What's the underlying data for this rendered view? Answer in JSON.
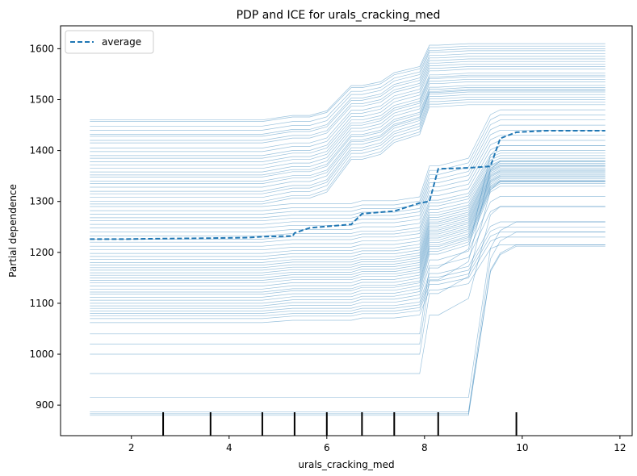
{
  "chart_data": {
    "type": "line",
    "title": "PDP and ICE for urals_cracking_med",
    "xlabel": "urals_cracking_med",
    "ylabel": "Partial dependence",
    "xlim": [
      0.55,
      12.25
    ],
    "ylim": [
      840,
      1645
    ],
    "x_ticks": [
      2,
      4,
      6,
      8,
      10,
      12
    ],
    "y_ticks": [
      900,
      1000,
      1100,
      1200,
      1300,
      1400,
      1500,
      1600
    ],
    "legend": {
      "label": "average",
      "position": "top-left"
    },
    "colors": {
      "ice": "#1f77b4",
      "average": "#1f77b4",
      "rug": "#000000"
    },
    "rug_x": [
      2.65,
      3.62,
      4.68,
      5.34,
      6.0,
      6.72,
      7.38,
      8.28,
      9.88
    ],
    "x": [
      1.15,
      1.8,
      2.65,
      3.62,
      4.4,
      4.68,
      5.3,
      5.34,
      5.65,
      6.0,
      6.5,
      6.72,
      7.1,
      7.38,
      7.9,
      8.1,
      8.28,
      8.9,
      9.35,
      9.55,
      9.88,
      10.5,
      11.7
    ],
    "average": [
      1226,
      1226,
      1227,
      1228,
      1229,
      1231,
      1232,
      1238,
      1248,
      1251,
      1255,
      1276,
      1279,
      1281,
      1297,
      1300,
      1364,
      1366,
      1369,
      1424,
      1436,
      1439,
      1439
    ],
    "ice_group_a": {
      "description_free": true,
      "starts": [
        1460,
        1457,
        1448,
        1440,
        1432,
        1428,
        1420,
        1415,
        1405,
        1398,
        1390,
        1385,
        1378,
        1372,
        1365,
        1358,
        1352,
        1348,
        1340,
        1335,
        1328,
        1320,
        1315,
        1308,
        1300,
        1295
      ],
      "rise1": [
        0.085,
        0.085,
        0.08,
        0.085,
        0.075,
        0.085,
        0.08,
        0.085,
        0.08,
        0.08,
        0.075,
        0.08,
        0.08,
        0.075,
        0.08,
        0.075,
        0.08,
        0.075,
        0.08,
        0.075,
        0.08,
        0.075,
        0.08,
        0.075,
        0.08,
        0.075
      ],
      "ends": [
        1610,
        1605,
        1600,
        1596,
        1590,
        1585,
        1580,
        1575,
        1570,
        1565,
        1560,
        1552,
        1548,
        1545,
        1540,
        1535,
        1528,
        1524,
        1520,
        1518,
        1515,
        1510,
        1505,
        1500,
        1495,
        1490
      ]
    },
    "ice_group_b": {
      "starts": [
        1290,
        1282,
        1275,
        1268,
        1262,
        1255,
        1248,
        1240,
        1232,
        1226,
        1220,
        1212,
        1205,
        1198,
        1192,
        1186,
        1180,
        1175,
        1170,
        1165,
        1160,
        1155,
        1150,
        1145,
        1140,
        1134,
        1128,
        1122,
        1118,
        1112,
        1106,
        1100,
        1095,
        1090,
        1085,
        1080,
        1075,
        1070,
        1062
      ],
      "ends": [
        1480,
        1470,
        1460,
        1450,
        1440,
        1430,
        1420,
        1410,
        1400,
        1395,
        1390,
        1385,
        1380,
        1378,
        1375,
        1372,
        1370,
        1368,
        1365,
        1362,
        1360,
        1358,
        1355,
        1352,
        1350,
        1348,
        1345,
        1342,
        1340,
        1338,
        1335,
        1330,
        1310,
        1290,
        1260,
        1250,
        1240,
        1230,
        1215
      ]
    },
    "ice_low": [
      {
        "start": 1040,
        "end": 1410
      },
      {
        "start": 1020,
        "end": 1380
      },
      {
        "start": 1000,
        "end": 1340
      },
      {
        "start": 962,
        "end": 1290
      },
      {
        "start": 915,
        "end": 1260
      },
      {
        "start": 887,
        "end": 1240
      },
      {
        "start": 883,
        "end": 1215
      },
      {
        "start": 880,
        "end": 1212
      }
    ]
  }
}
